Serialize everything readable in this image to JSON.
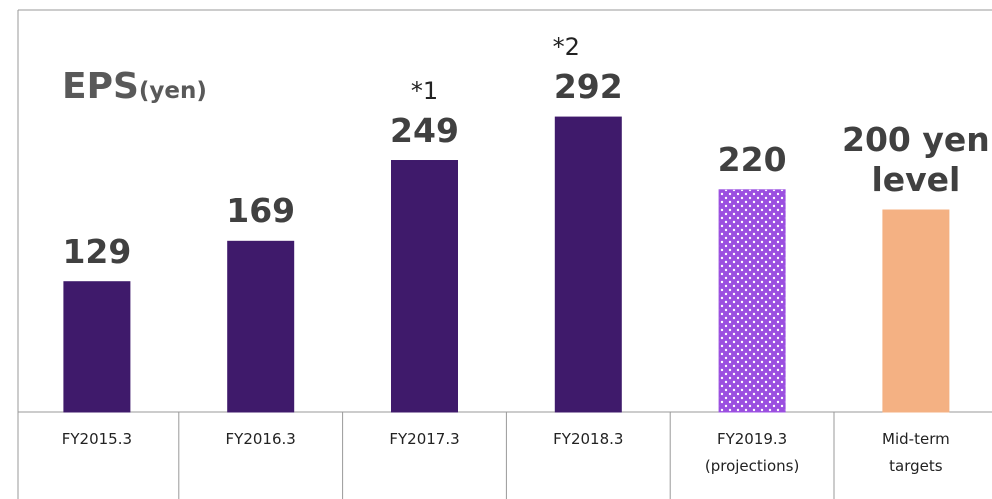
{
  "chart_data": {
    "type": "bar",
    "title": "EPS",
    "title_unit": "(yen)",
    "categories": [
      "FY2015.3",
      "FY2016.3",
      "FY2017.3",
      "FY2018.3",
      "FY2019.3\n(projections)",
      "Mid-term\ntargets"
    ],
    "values": [
      129,
      169,
      249,
      292,
      220,
      200
    ],
    "value_labels": [
      "129",
      "169",
      "249",
      "292",
      "220",
      "200 yen\nlevel"
    ],
    "colors": [
      "#3f1a6b",
      "#3f1a6b",
      "#3f1a6b",
      "#3f1a6b",
      "#9b4fe0",
      "#f4b183"
    ],
    "dotted": [
      false,
      false,
      false,
      false,
      true,
      false
    ],
    "annotations": [
      {
        "text": "*1",
        "category": 2
      },
      {
        "text": "*2",
        "category": 3
      }
    ],
    "ylim": [
      0,
      400
    ]
  }
}
